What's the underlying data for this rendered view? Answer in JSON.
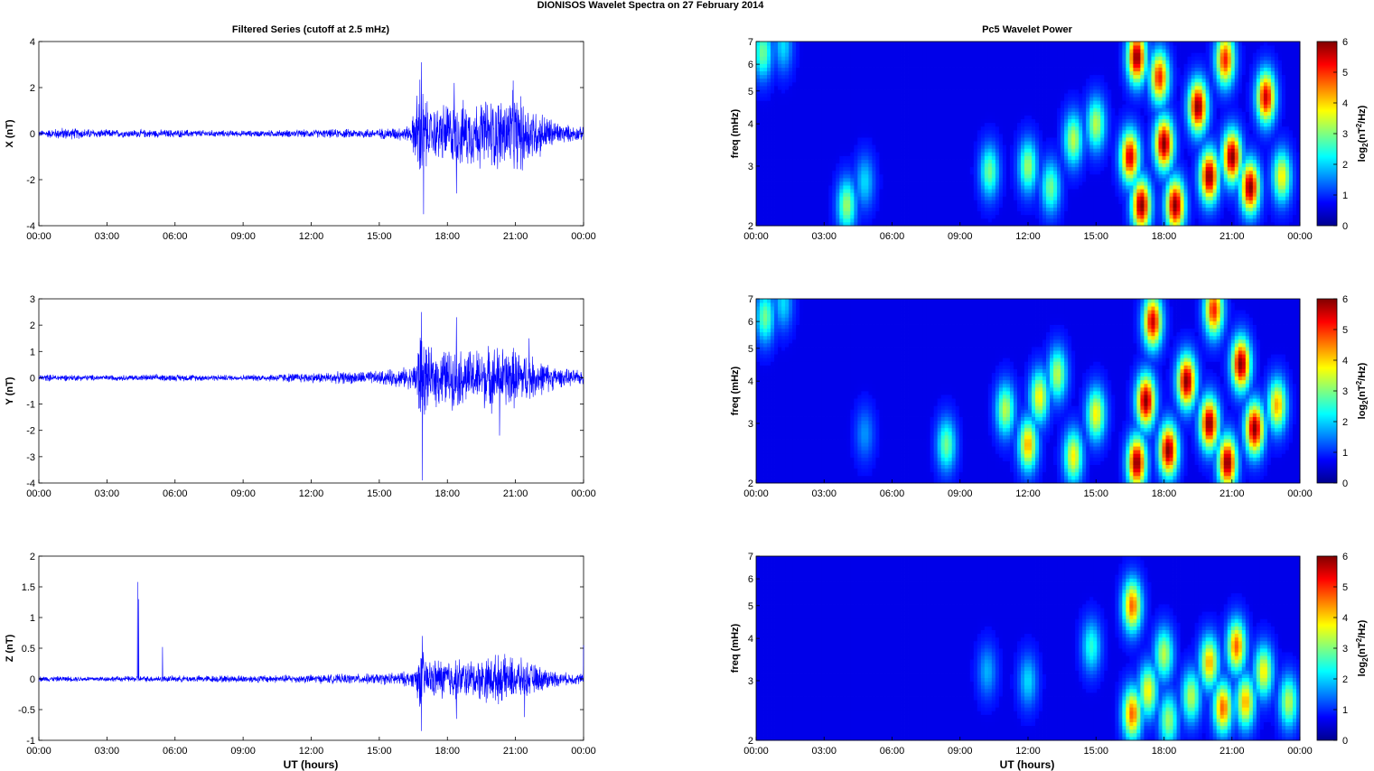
{
  "figure": {
    "suptitle": "DIONISOS Wavelet Spectra on 27 February  2014",
    "left_title": "Filtered Series (cutoff at 2.5 mHz)",
    "right_title": "Pc5 Wavelet Power",
    "xlabel": "UT (hours)"
  },
  "chart_data": [
    {
      "type": "line",
      "panel": "X",
      "ylabel": "X (nT)",
      "ylim": [
        -4,
        4
      ],
      "yticks": [
        -4,
        -2,
        0,
        2,
        4
      ],
      "xticks": [
        "00:00",
        "03:00",
        "06:00",
        "09:00",
        "12:00",
        "15:00",
        "18:00",
        "21:00",
        "00:00"
      ],
      "xlim_hours": [
        0,
        24
      ],
      "series": [
        {
          "color": "#0000ff",
          "envelope": [
            [
              0,
              0.15
            ],
            [
              1,
              0.3
            ],
            [
              3,
              0.2
            ],
            [
              6,
              0.2
            ],
            [
              9,
              0.15
            ],
            [
              12,
              0.2
            ],
            [
              15,
              0.25
            ],
            [
              16.4,
              0.4
            ],
            [
              16.8,
              3.0
            ],
            [
              17.2,
              1.2
            ],
            [
              18,
              1.6
            ],
            [
              19,
              1.6
            ],
            [
              20,
              1.8
            ],
            [
              21,
              2.0
            ],
            [
              22,
              1.2
            ],
            [
              23,
              0.5
            ],
            [
              24,
              0.3
            ]
          ],
          "spikes": [
            [
              16.85,
              3.1
            ],
            [
              16.95,
              -3.5
            ],
            [
              18.4,
              -2.6
            ],
            [
              18.3,
              2.2
            ],
            [
              20.9,
              2.3
            ],
            [
              21.3,
              -1.6
            ]
          ]
        }
      ]
    },
    {
      "type": "line",
      "panel": "Y",
      "ylabel": "Y (nT)",
      "ylim": [
        -4,
        3
      ],
      "yticks": [
        -4,
        -3,
        -2,
        -1,
        0,
        1,
        2,
        3
      ],
      "xticks": [
        "00:00",
        "03:00",
        "06:00",
        "09:00",
        "12:00",
        "15:00",
        "18:00",
        "21:00",
        "00:00"
      ],
      "xlim_hours": [
        0,
        24
      ],
      "series": [
        {
          "color": "#0000ff",
          "envelope": [
            [
              0,
              0.15
            ],
            [
              3,
              0.12
            ],
            [
              6,
              0.15
            ],
            [
              9,
              0.12
            ],
            [
              11,
              0.2
            ],
            [
              13,
              0.25
            ],
            [
              15,
              0.3
            ],
            [
              16.5,
              0.5
            ],
            [
              16.8,
              2.2
            ],
            [
              17.2,
              1.2
            ],
            [
              18,
              1.3
            ],
            [
              19,
              1.2
            ],
            [
              20,
              1.4
            ],
            [
              21,
              1.3
            ],
            [
              22,
              0.8
            ],
            [
              23,
              0.4
            ],
            [
              24,
              0.3
            ]
          ],
          "spikes": [
            [
              16.85,
              2.5
            ],
            [
              16.9,
              -3.9
            ],
            [
              18.4,
              2.3
            ],
            [
              20.3,
              -2.2
            ],
            [
              21.6,
              1.5
            ]
          ]
        }
      ]
    },
    {
      "type": "line",
      "panel": "Z",
      "ylabel": "Z (nT)",
      "ylim": [
        -1,
        2
      ],
      "yticks": [
        -1,
        -0.5,
        0,
        0.5,
        1,
        1.5,
        2
      ],
      "xticks": [
        "00:00",
        "03:00",
        "06:00",
        "09:00",
        "12:00",
        "15:00",
        "18:00",
        "21:00",
        "00:00"
      ],
      "xlim_hours": [
        0,
        24
      ],
      "series": [
        {
          "color": "#0000ff",
          "envelope": [
            [
              0,
              0.05
            ],
            [
              3,
              0.05
            ],
            [
              6,
              0.06
            ],
            [
              9,
              0.07
            ],
            [
              12,
              0.08
            ],
            [
              15,
              0.1
            ],
            [
              16.5,
              0.15
            ],
            [
              16.8,
              0.55
            ],
            [
              17.2,
              0.35
            ],
            [
              18,
              0.4
            ],
            [
              19,
              0.35
            ],
            [
              20,
              0.45
            ],
            [
              21,
              0.4
            ],
            [
              22,
              0.25
            ],
            [
              23,
              0.12
            ],
            [
              24,
              0.1
            ]
          ],
          "spikes": [
            [
              4.35,
              1.58
            ],
            [
              4.4,
              1.3
            ],
            [
              5.45,
              0.52
            ],
            [
              16.85,
              -0.85
            ],
            [
              16.9,
              0.7
            ],
            [
              18.4,
              -0.65
            ],
            [
              21.4,
              -0.62
            ],
            [
              24,
              0.55
            ]
          ]
        }
      ]
    },
    {
      "type": "heatmap",
      "panel": "X",
      "ylabel": "freq (mHz)",
      "yticks": [
        2,
        3,
        4,
        5,
        6,
        7
      ],
      "yscale": "log",
      "ylim": [
        2,
        7
      ],
      "colorbar_label": "log2(nT2/Hz)",
      "colorbar_ticks": [
        0,
        1,
        2,
        3,
        4,
        5,
        6
      ],
      "clim": [
        0,
        6
      ],
      "xticks": [
        "00:00",
        "03:00",
        "06:00",
        "09:00",
        "12:00",
        "15:00",
        "18:00",
        "21:00",
        "00:00"
      ],
      "blobs": [
        [
          0.3,
          6.5,
          2.5
        ],
        [
          1.2,
          6.8,
          1.5
        ],
        [
          4,
          2.3,
          2.8
        ],
        [
          4.8,
          2.7,
          1.5
        ],
        [
          10.3,
          2.9,
          2.5
        ],
        [
          12,
          3.0,
          2.8
        ],
        [
          13,
          2.6,
          2.5
        ],
        [
          14,
          3.6,
          3.0
        ],
        [
          15,
          4.0,
          3.0
        ],
        [
          16.5,
          3.2,
          5.5
        ],
        [
          17,
          2.3,
          6
        ],
        [
          18,
          3.5,
          6
        ],
        [
          18.5,
          2.3,
          6
        ],
        [
          19.5,
          4.5,
          6
        ],
        [
          20,
          2.8,
          6
        ],
        [
          21,
          3.2,
          6
        ],
        [
          21.8,
          2.6,
          6
        ],
        [
          22.5,
          4.8,
          5.5
        ],
        [
          23.2,
          2.8,
          3.5
        ],
        [
          17.8,
          5.5,
          5
        ],
        [
          20.7,
          6.2,
          5
        ],
        [
          16.8,
          6.3,
          6
        ]
      ]
    },
    {
      "type": "heatmap",
      "panel": "Y",
      "ylabel": "freq (mHz)",
      "yticks": [
        2,
        3,
        4,
        5,
        6,
        7
      ],
      "yscale": "log",
      "ylim": [
        2,
        7
      ],
      "colorbar_label": "log2(nT2/Hz)",
      "colorbar_ticks": [
        0,
        1,
        2,
        3,
        4,
        5,
        6
      ],
      "clim": [
        0,
        6
      ],
      "xticks": [
        "00:00",
        "03:00",
        "06:00",
        "09:00",
        "12:00",
        "15:00",
        "18:00",
        "21:00",
        "00:00"
      ],
      "blobs": [
        [
          0.4,
          6.2,
          2.5
        ],
        [
          1.2,
          6.8,
          1.5
        ],
        [
          4.8,
          2.8,
          1
        ],
        [
          8.4,
          2.6,
          2.5
        ],
        [
          11,
          3.3,
          3
        ],
        [
          12,
          2.6,
          4
        ],
        [
          12.5,
          3.6,
          3.5
        ],
        [
          13.3,
          4.2,
          3
        ],
        [
          14,
          2.4,
          3.5
        ],
        [
          15,
          3.2,
          3.5
        ],
        [
          16.8,
          2.3,
          6
        ],
        [
          17.2,
          3.5,
          6
        ],
        [
          18.2,
          2.5,
          6
        ],
        [
          19,
          4,
          6
        ],
        [
          20,
          3.0,
          6
        ],
        [
          20.8,
          2.3,
          6
        ],
        [
          21.4,
          4.5,
          6
        ],
        [
          22,
          2.9,
          6
        ],
        [
          23,
          3.4,
          4
        ],
        [
          17.5,
          6,
          5.5
        ],
        [
          20.2,
          6.5,
          5
        ]
      ]
    },
    {
      "type": "heatmap",
      "panel": "Z",
      "ylabel": "freq (mHz)",
      "yticks": [
        2,
        3,
        4,
        5,
        6,
        7
      ],
      "yscale": "log",
      "ylim": [
        2,
        7
      ],
      "colorbar_label": "log2(nT2/Hz)",
      "colorbar_ticks": [
        0,
        1,
        2,
        3,
        4,
        5,
        6
      ],
      "clim": [
        0,
        6
      ],
      "xticks": [
        "00:00",
        "03:00",
        "06:00",
        "09:00",
        "12:00",
        "15:00",
        "18:00",
        "21:00",
        "00:00"
      ],
      "blobs": [
        [
          10.2,
          3.2,
          1.2
        ],
        [
          12,
          3.0,
          1.5
        ],
        [
          14.8,
          3.8,
          2
        ],
        [
          16.6,
          2.4,
          4.5
        ],
        [
          16.6,
          5,
          4.5
        ],
        [
          17.3,
          2.8,
          3.5
        ],
        [
          18,
          3.6,
          3
        ],
        [
          18.2,
          2.3,
          2.8
        ],
        [
          19.2,
          2.7,
          3
        ],
        [
          20,
          3.4,
          4
        ],
        [
          20.6,
          2.5,
          4.5
        ],
        [
          21.2,
          3.8,
          4.5
        ],
        [
          21.6,
          2.6,
          4
        ],
        [
          22.4,
          3.2,
          3.5
        ],
        [
          23.5,
          2.6,
          3
        ]
      ]
    }
  ]
}
